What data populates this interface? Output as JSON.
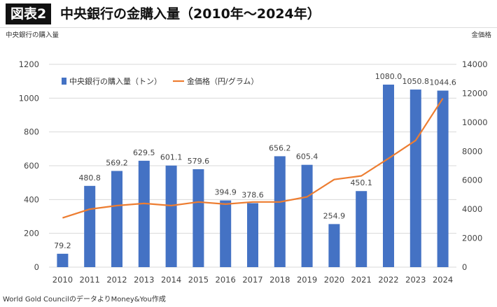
{
  "header": {
    "figure_label": "図表2",
    "title": "中央銀行の金購入量（2010年～2024年）"
  },
  "axis_units": {
    "left": "中央銀行の購入量",
    "right": "金価格"
  },
  "source": "World Gold CouncilのデータよりMoney&You作成",
  "chart_data": {
    "type": "bar",
    "title": "中央銀行の金購入量（2010年～2024年）",
    "categories": [
      "2010",
      "2011",
      "2012",
      "2013",
      "2014",
      "2015",
      "2016",
      "2017",
      "2018",
      "2019",
      "2020",
      "2021",
      "2022",
      "2023",
      "2024"
    ],
    "series": [
      {
        "name": "中央銀行の購入量（トン）",
        "type": "bar",
        "axis": "left",
        "color": "#4472C4",
        "values": [
          79.2,
          480.8,
          569.2,
          629.5,
          601.1,
          579.6,
          394.9,
          378.6,
          656.2,
          605.4,
          254.9,
          450.1,
          1080.0,
          1050.8,
          1044.6
        ],
        "labels": [
          "79.2",
          "480.8",
          "569.2",
          "629.5",
          "601.1",
          "579.6",
          "394.9",
          "378.6",
          "656.2",
          "605.4",
          "254.9",
          "450.1",
          "1080.0",
          "1050.8",
          "1044.6"
        ]
      },
      {
        "name": "金価格（円/グラム）",
        "type": "line",
        "axis": "right",
        "color": "#ED7D31",
        "values": [
          3400,
          4000,
          4250,
          4400,
          4250,
          4500,
          4350,
          4500,
          4500,
          4850,
          6050,
          6300,
          7500,
          8750,
          11650
        ]
      }
    ],
    "y_left": {
      "min": 0,
      "max": 1200,
      "ticks": [
        0,
        200,
        400,
        600,
        800,
        1000,
        1200
      ]
    },
    "y_right": {
      "min": 0,
      "max": 14000,
      "ticks": [
        0,
        2000,
        4000,
        6000,
        8000,
        10000,
        12000,
        14000
      ]
    },
    "grid": true,
    "legend_position": "top-left"
  }
}
